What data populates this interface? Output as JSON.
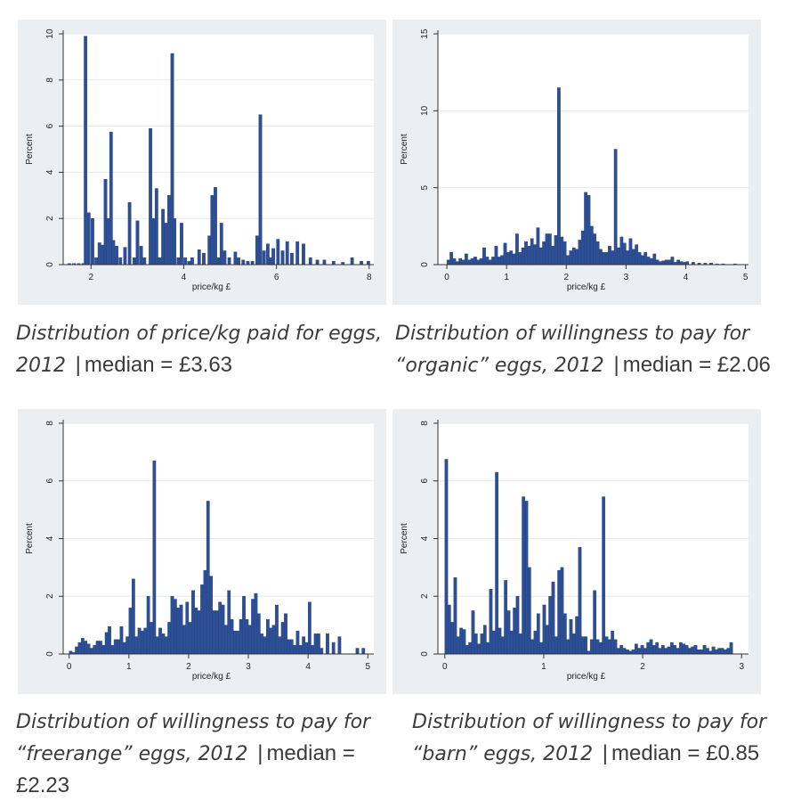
{
  "chart_data": [
    {
      "type": "bar",
      "subtype": "histogram",
      "title": "",
      "xlabel": "price/kg £",
      "ylabel": "Percent",
      "xlim": [
        1.4,
        8.1
      ],
      "ylim": [
        0,
        10
      ],
      "xticks": [
        2,
        4,
        6,
        8
      ],
      "yticks": [
        0,
        2,
        4,
        6,
        8,
        10
      ],
      "grid": true,
      "color": "#2d4f96",
      "bin_width": 0.065,
      "x": [
        1.5,
        1.6,
        1.7,
        1.8,
        1.85,
        1.92,
        2.0,
        2.08,
        2.15,
        2.22,
        2.28,
        2.33,
        2.4,
        2.45,
        2.52,
        2.6,
        2.7,
        2.8,
        2.9,
        2.97,
        3.05,
        3.12,
        3.25,
        3.32,
        3.38,
        3.45,
        3.52,
        3.58,
        3.65,
        3.72,
        3.77,
        3.85,
        3.92,
        4.0,
        4.08,
        4.15,
        4.3,
        4.4,
        4.52,
        4.58,
        4.65,
        4.72,
        4.78,
        4.85,
        4.95,
        5.08,
        5.15,
        5.25,
        5.35,
        5.45,
        5.55,
        5.62,
        5.7,
        5.78,
        5.85,
        5.9,
        6.0,
        6.1,
        6.2,
        6.3,
        6.42,
        6.55,
        6.7,
        6.85,
        7.0,
        7.2,
        7.4,
        7.6,
        7.8,
        7.95
      ],
      "values": [
        0.05,
        0.05,
        0.05,
        0.05,
        9.9,
        2.25,
        2.0,
        0.3,
        0.95,
        0.85,
        3.7,
        2.0,
        5.75,
        1.05,
        0.8,
        0.3,
        0.75,
        2.7,
        0.3,
        1.9,
        0.8,
        0.3,
        5.9,
        2.0,
        3.3,
        0.3,
        2.4,
        1.8,
        3.0,
        9.15,
        2.0,
        0.3,
        1.8,
        0.3,
        0.15,
        0.3,
        0.65,
        0.5,
        1.25,
        3.0,
        3.35,
        0.3,
        1.8,
        0.6,
        0.3,
        0.55,
        0.3,
        0.2,
        0.15,
        0.15,
        1.25,
        6.5,
        0.6,
        0.9,
        0.3,
        0.7,
        1.1,
        0.6,
        1.0,
        0.5,
        1.0,
        0.9,
        0.3,
        0.2,
        0.2,
        0.15,
        0.1,
        0.3,
        0.15,
        0.15
      ]
    },
    {
      "type": "bar",
      "subtype": "histogram",
      "title": "",
      "xlabel": "price/kg £",
      "ylabel": "Percent",
      "xlim": [
        -0.15,
        5.05
      ],
      "ylim": [
        0,
        15
      ],
      "xticks": [
        0,
        1,
        2,
        3,
        4,
        5
      ],
      "yticks": [
        0,
        5,
        10,
        15
      ],
      "grid": true,
      "color": "#2d4f96",
      "bin_width": 0.05,
      "x": [
        0.0,
        0.05,
        0.1,
        0.15,
        0.2,
        0.25,
        0.3,
        0.35,
        0.4,
        0.45,
        0.5,
        0.55,
        0.6,
        0.65,
        0.7,
        0.75,
        0.8,
        0.85,
        0.9,
        0.95,
        1.0,
        1.05,
        1.1,
        1.15,
        1.2,
        1.25,
        1.3,
        1.35,
        1.4,
        1.45,
        1.5,
        1.55,
        1.6,
        1.65,
        1.7,
        1.75,
        1.8,
        1.85,
        1.9,
        1.95,
        2.0,
        2.05,
        2.1,
        2.15,
        2.2,
        2.25,
        2.3,
        2.35,
        2.4,
        2.45,
        2.5,
        2.55,
        2.6,
        2.65,
        2.7,
        2.75,
        2.8,
        2.85,
        2.9,
        2.95,
        3.0,
        3.05,
        3.1,
        3.15,
        3.2,
        3.25,
        3.3,
        3.35,
        3.4,
        3.45,
        3.5,
        3.55,
        3.6,
        3.65,
        3.7,
        3.75,
        3.8,
        3.85,
        3.9,
        3.95,
        4.0,
        4.1,
        4.2,
        4.3,
        4.4,
        4.5,
        4.6,
        4.8
      ],
      "values": [
        0.3,
        0.8,
        0.4,
        0.2,
        0.4,
        0.3,
        0.7,
        0.3,
        0.4,
        0.5,
        0.3,
        0.4,
        1.1,
        0.5,
        0.3,
        0.5,
        1.2,
        0.5,
        0.6,
        1.4,
        0.8,
        0.9,
        0.7,
        2.0,
        0.8,
        1.1,
        1.5,
        1.2,
        1.7,
        1.3,
        2.4,
        1.1,
        1.5,
        2.0,
        2.0,
        1.2,
        1.9,
        11.5,
        1.8,
        1.5,
        0.6,
        0.9,
        1.1,
        1.0,
        1.6,
        2.2,
        4.7,
        4.5,
        2.5,
        2.0,
        1.5,
        1.0,
        0.8,
        0.8,
        1.2,
        0.9,
        7.5,
        1.1,
        1.8,
        1.4,
        0.9,
        1.7,
        1.0,
        1.3,
        0.8,
        0.6,
        0.8,
        0.5,
        0.4,
        0.7,
        0.3,
        0.2,
        0.25,
        0.3,
        0.3,
        0.5,
        0.15,
        0.3,
        0.2,
        0.15,
        0.2,
        0.15,
        0.1,
        0.1,
        0.1,
        0.05,
        0.05,
        0.05
      ]
    },
    {
      "type": "bar",
      "subtype": "histogram",
      "title": "",
      "xlabel": "price/kg £",
      "ylabel": "Percent",
      "xlim": [
        -0.1,
        5.1
      ],
      "ylim": [
        0,
        8
      ],
      "xticks": [
        0,
        1,
        2,
        3,
        4,
        5
      ],
      "yticks": [
        0,
        2,
        4,
        6,
        8
      ],
      "grid": true,
      "color": "#2d4f96",
      "bin_width": 0.05,
      "x": [
        0.0,
        0.05,
        0.1,
        0.15,
        0.2,
        0.25,
        0.3,
        0.35,
        0.4,
        0.45,
        0.5,
        0.55,
        0.6,
        0.65,
        0.7,
        0.75,
        0.8,
        0.85,
        0.9,
        0.95,
        1.0,
        1.05,
        1.1,
        1.15,
        1.2,
        1.25,
        1.3,
        1.35,
        1.4,
        1.45,
        1.5,
        1.55,
        1.6,
        1.65,
        1.7,
        1.75,
        1.8,
        1.85,
        1.9,
        1.95,
        2.0,
        2.05,
        2.1,
        2.15,
        2.2,
        2.25,
        2.3,
        2.35,
        2.4,
        2.45,
        2.5,
        2.55,
        2.6,
        2.65,
        2.7,
        2.75,
        2.8,
        2.85,
        2.9,
        2.95,
        3.0,
        3.05,
        3.1,
        3.15,
        3.2,
        3.25,
        3.3,
        3.35,
        3.4,
        3.45,
        3.5,
        3.55,
        3.6,
        3.65,
        3.7,
        3.75,
        3.8,
        3.85,
        3.9,
        3.95,
        4.0,
        4.05,
        4.1,
        4.15,
        4.2,
        4.3,
        4.4,
        4.5,
        4.8,
        4.9
      ],
      "values": [
        0.1,
        0.05,
        0.25,
        0.4,
        0.55,
        0.45,
        0.35,
        0.2,
        0.3,
        0.45,
        0.45,
        0.3,
        0.75,
        0.95,
        0.3,
        0.5,
        0.5,
        0.95,
        0.4,
        0.6,
        1.6,
        2.6,
        0.6,
        0.9,
        0.8,
        0.9,
        2.0,
        1.1,
        6.7,
        0.6,
        0.9,
        0.7,
        0.6,
        1.1,
        2.0,
        1.9,
        1.6,
        1.7,
        1.0,
        1.8,
        1.1,
        2.2,
        1.6,
        1.5,
        2.4,
        2.9,
        5.3,
        2.7,
        1.5,
        1.5,
        1.8,
        1.7,
        1.0,
        2.2,
        1.2,
        0.8,
        0.8,
        1.2,
        2.0,
        1.2,
        1.0,
        1.9,
        2.1,
        1.4,
        0.7,
        0.6,
        1.2,
        0.9,
        1.0,
        1.7,
        0.6,
        1.1,
        1.4,
        0.5,
        0.5,
        0.3,
        0.8,
        0.3,
        0.6,
        0.4,
        1.8,
        0.3,
        0.7,
        0.7,
        0.2,
        0.7,
        0.4,
        0.6,
        0.2,
        0.2
      ]
    },
    {
      "type": "bar",
      "subtype": "histogram",
      "title": "",
      "xlabel": "price/kg £",
      "ylabel": "Percent",
      "xlim": [
        -0.07,
        3.07
      ],
      "ylim": [
        0,
        8
      ],
      "xticks": [
        0,
        1,
        2,
        3
      ],
      "yticks": [
        0,
        2,
        4,
        6,
        8
      ],
      "grid": true,
      "color": "#2d4f96",
      "bin_width": 0.03,
      "x": [
        0.0,
        0.03,
        0.06,
        0.09,
        0.12,
        0.15,
        0.18,
        0.21,
        0.24,
        0.27,
        0.3,
        0.33,
        0.36,
        0.39,
        0.42,
        0.45,
        0.48,
        0.51,
        0.54,
        0.57,
        0.6,
        0.63,
        0.66,
        0.69,
        0.72,
        0.75,
        0.78,
        0.81,
        0.84,
        0.87,
        0.9,
        0.93,
        0.96,
        0.99,
        1.02,
        1.05,
        1.08,
        1.11,
        1.14,
        1.17,
        1.2,
        1.23,
        1.26,
        1.29,
        1.32,
        1.35,
        1.38,
        1.41,
        1.44,
        1.47,
        1.5,
        1.53,
        1.56,
        1.59,
        1.62,
        1.65,
        1.68,
        1.71,
        1.74,
        1.77,
        1.8,
        1.83,
        1.86,
        1.89,
        1.92,
        1.95,
        1.98,
        2.01,
        2.04,
        2.07,
        2.1,
        2.13,
        2.16,
        2.19,
        2.22,
        2.25,
        2.28,
        2.31,
        2.34,
        2.37,
        2.4,
        2.43,
        2.46,
        2.49,
        2.52,
        2.55,
        2.58,
        2.61,
        2.64,
        2.67,
        2.7,
        2.73,
        2.76,
        2.79,
        2.82,
        2.85,
        2.88
      ],
      "values": [
        6.75,
        1.7,
        1.1,
        2.65,
        0.6,
        0.9,
        0.85,
        0.3,
        0.4,
        1.5,
        0.7,
        0.35,
        0.7,
        1.0,
        0.4,
        2.25,
        0.8,
        6.3,
        0.9,
        0.6,
        2.55,
        1.5,
        0.8,
        1.6,
        2.0,
        0.7,
        5.45,
        5.3,
        3.0,
        0.5,
        0.8,
        1.4,
        0.4,
        1.7,
        1.0,
        2.0,
        2.5,
        0.6,
        2.9,
        3.0,
        1.4,
        0.5,
        1.2,
        0.7,
        1.3,
        3.7,
        0.6,
        0.6,
        0.1,
        0.5,
        2.2,
        0.5,
        0.4,
        5.45,
        0.6,
        0.5,
        0.8,
        0.5,
        0.2,
        0.3,
        0.2,
        0.15,
        0.1,
        0.15,
        0.35,
        0.2,
        0.3,
        0.2,
        0.4,
        0.5,
        0.3,
        0.4,
        0.2,
        0.3,
        0.2,
        0.25,
        0.4,
        0.3,
        0.2,
        0.4,
        0.35,
        0.3,
        0.2,
        0.25,
        0.3,
        0.15,
        0.15,
        0.3,
        0.2,
        0.1,
        0.25,
        0.15,
        0.2,
        0.2,
        0.15,
        0.2,
        0.4
      ]
    }
  ],
  "captions": [
    {
      "italic": "Distribution of price/kg paid for eggs, 2012",
      "sep": "|",
      "median": "median = £3.63"
    },
    {
      "italic": "Distribution of willingness to pay for “organic” eggs, 2012",
      "sep": "|",
      "median": "median = £2.06"
    },
    {
      "italic": "Distribution of willingness to pay for “freerange” eggs, 2012",
      "sep": "|",
      "median": "median = £2.23"
    },
    {
      "italic": "Distribution of willingness to pay for “barn” eggs, 2012",
      "sep": "|",
      "median": "median = £0.85"
    }
  ]
}
